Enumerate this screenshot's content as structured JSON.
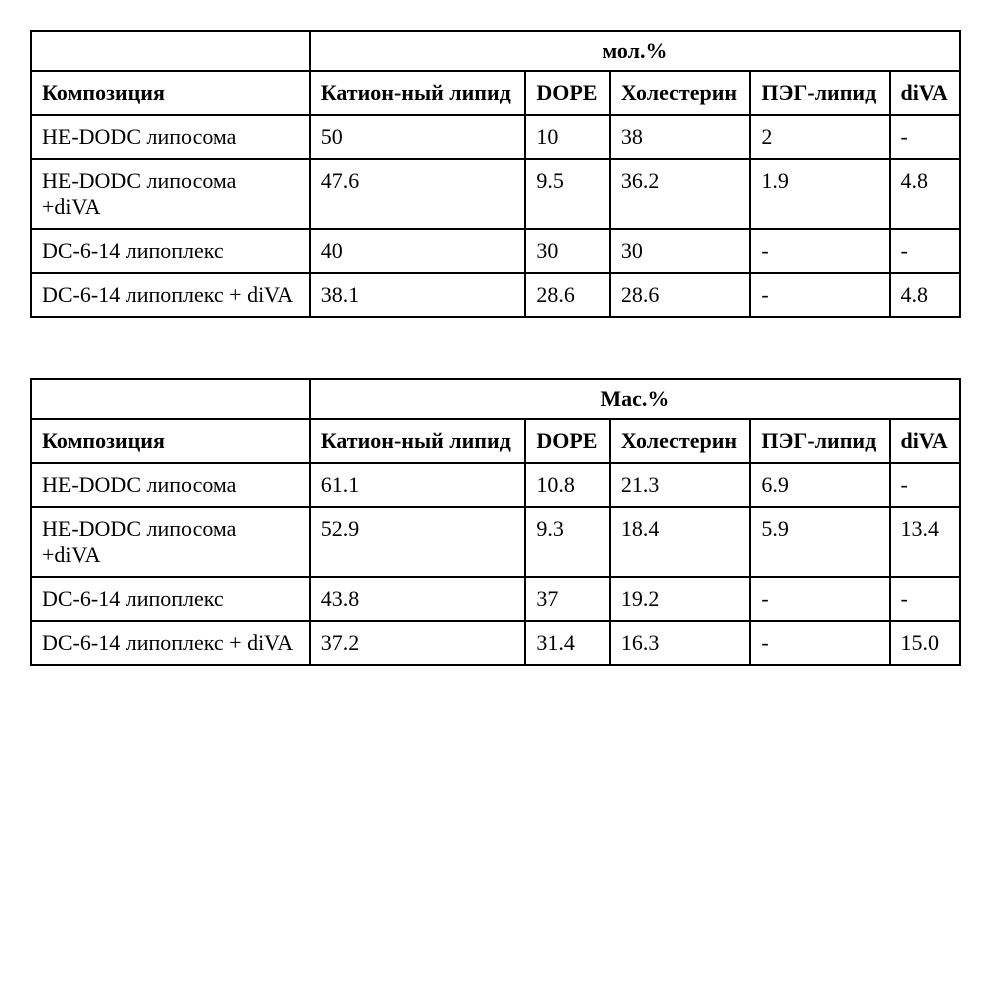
{
  "tables": [
    {
      "group_header": "мол.%",
      "columns": [
        "Композиция",
        "Катион-ный липид",
        "DOPE",
        "Холестерин",
        "ПЭГ-липид",
        "diVA"
      ],
      "rows": [
        [
          "HE-DODC липосома",
          "50",
          "10",
          "38",
          "2",
          "-"
        ],
        [
          "HE-DODC липосома +diVA",
          "47.6",
          "9.5",
          "36.2",
          "1.9",
          "4.8"
        ],
        [
          "DC-6-14 липоплекс",
          "40",
          "30",
          "30",
          "-",
          "-"
        ],
        [
          "DC-6-14 липоплекс + diVA",
          "38.1",
          "28.6",
          "28.6",
          "-",
          "4.8"
        ]
      ]
    },
    {
      "group_header": "Мас.%",
      "columns": [
        "Композиция",
        "Катион-ный липид",
        "DOPE",
        "Холестерин",
        "ПЭГ-липид",
        "diVA"
      ],
      "rows": [
        [
          "HE-DODC липосома",
          "61.1",
          "10.8",
          "21.3",
          "6.9",
          "-"
        ],
        [
          "HE-DODC липосома +diVA",
          "52.9",
          "9.3",
          "18.4",
          "5.9",
          "13.4"
        ],
        [
          "DC-6-14 липоплекс",
          "43.8",
          "37",
          "19.2",
          "-",
          "-"
        ],
        [
          "DC-6-14 липоплекс + diVA",
          "37.2",
          "31.4",
          "16.3",
          "-",
          "15.0"
        ]
      ]
    }
  ]
}
